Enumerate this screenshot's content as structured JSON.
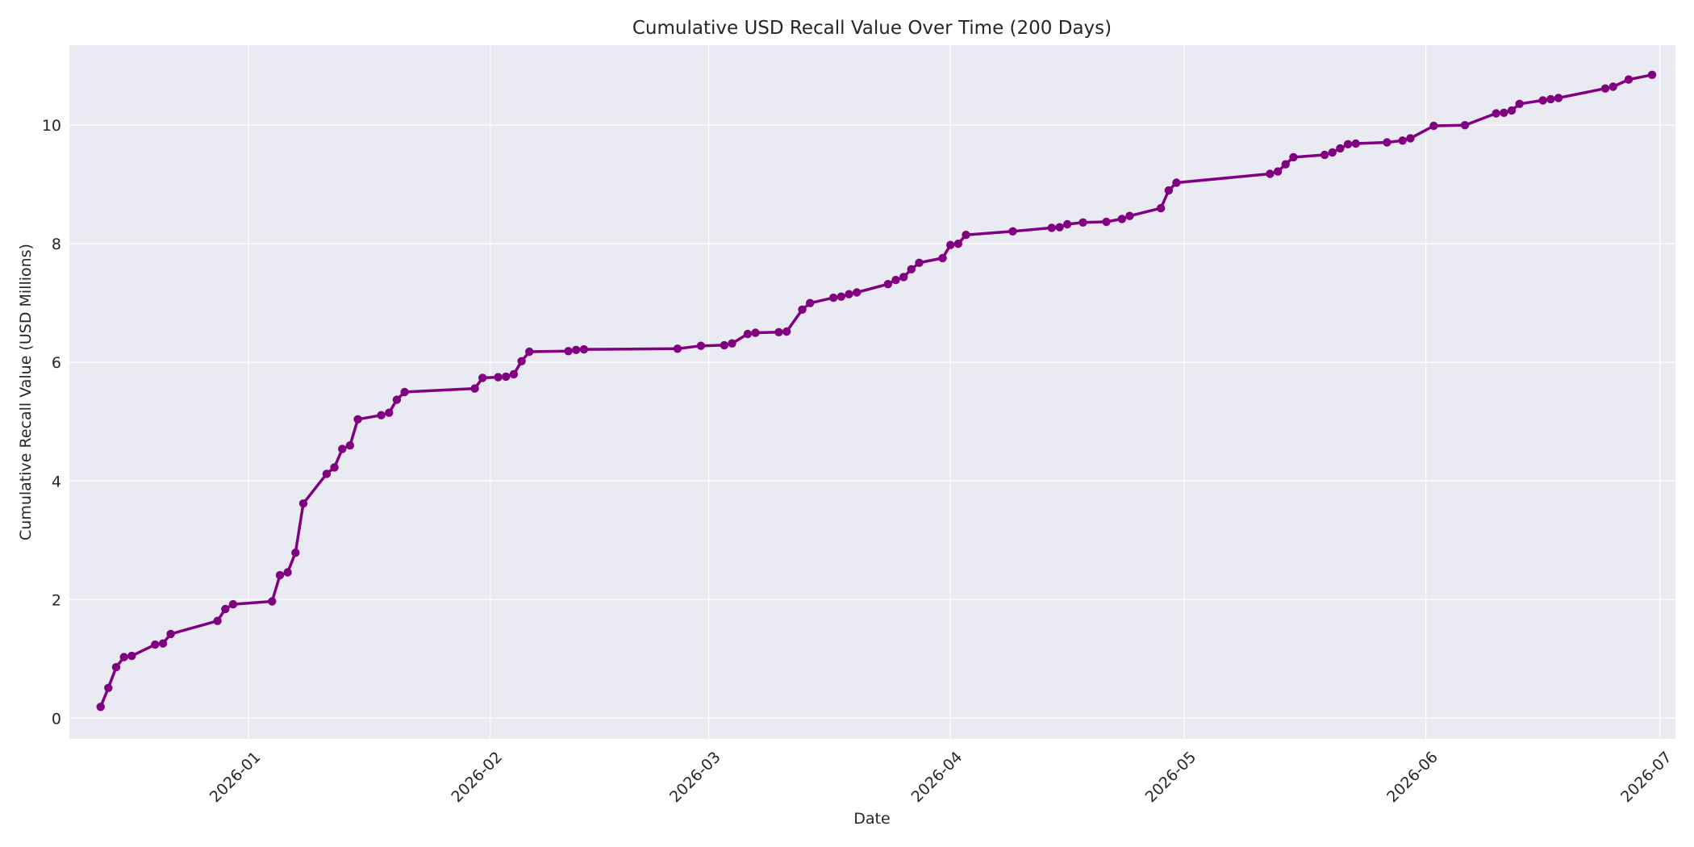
{
  "chart_data": {
    "type": "line",
    "title": "Cumulative USD Recall Value Over Time (200 Days)",
    "xlabel": "Date",
    "ylabel": "Cumulative Recall Value (USD Millions)",
    "xlim": [
      "2025-12-09",
      "2026-07-03"
    ],
    "ylim": [
      -0.35,
      11.35
    ],
    "x_ticks": [
      "2026-01-01",
      "2026-02-01",
      "2026-03-01",
      "2026-04-01",
      "2026-05-01",
      "2026-06-01",
      "2026-07-01"
    ],
    "x_tick_labels": [
      "2026-01",
      "2026-02",
      "2026-03",
      "2026-04",
      "2026-05",
      "2026-06",
      "2026-07"
    ],
    "y_ticks": [
      0,
      2,
      4,
      6,
      8,
      10
    ],
    "y_tick_labels": [
      "0",
      "2",
      "4",
      "6",
      "8",
      "10"
    ],
    "grid": true,
    "colors": {
      "series": "#800080",
      "plot_background": "#eaeaf2",
      "grid": "#ffffff"
    },
    "series": [
      {
        "points": [
          [
            "2025-12-13",
            0.19
          ],
          [
            "2025-12-14",
            0.51
          ],
          [
            "2025-12-15",
            0.86
          ],
          [
            "2025-12-16",
            1.03
          ],
          [
            "2025-12-17",
            1.05
          ],
          [
            "2025-12-20",
            1.24
          ],
          [
            "2025-12-21",
            1.26
          ],
          [
            "2025-12-22",
            1.42
          ],
          [
            "2025-12-28",
            1.64
          ],
          [
            "2025-12-29",
            1.84
          ],
          [
            "2025-12-30",
            1.92
          ],
          [
            "2026-01-04",
            1.97
          ],
          [
            "2026-01-05",
            2.41
          ],
          [
            "2026-01-06",
            2.46
          ],
          [
            "2026-01-07",
            2.79
          ],
          [
            "2026-01-08",
            3.62
          ],
          [
            "2026-01-11",
            4.12
          ],
          [
            "2026-01-12",
            4.23
          ],
          [
            "2026-01-13",
            4.54
          ],
          [
            "2026-01-14",
            4.6
          ],
          [
            "2026-01-15",
            5.04
          ],
          [
            "2026-01-18",
            5.11
          ],
          [
            "2026-01-19",
            5.15
          ],
          [
            "2026-01-20",
            5.37
          ],
          [
            "2026-01-21",
            5.5
          ],
          [
            "2026-01-30",
            5.56
          ],
          [
            "2026-01-31",
            5.74
          ],
          [
            "2026-02-02",
            5.75
          ],
          [
            "2026-02-03",
            5.76
          ],
          [
            "2026-02-04",
            5.8
          ],
          [
            "2026-02-05",
            6.02
          ],
          [
            "2026-02-06",
            6.18
          ],
          [
            "2026-02-11",
            6.19
          ],
          [
            "2026-02-12",
            6.21
          ],
          [
            "2026-02-13",
            6.22
          ],
          [
            "2026-02-25",
            6.23
          ],
          [
            "2026-02-28",
            6.28
          ],
          [
            "2026-03-03",
            6.29
          ],
          [
            "2026-03-04",
            6.32
          ],
          [
            "2026-03-06",
            6.48
          ],
          [
            "2026-03-07",
            6.5
          ],
          [
            "2026-03-10",
            6.51
          ],
          [
            "2026-03-11",
            6.52
          ],
          [
            "2026-03-13",
            6.89
          ],
          [
            "2026-03-14",
            7.0
          ],
          [
            "2026-03-17",
            7.09
          ],
          [
            "2026-03-18",
            7.11
          ],
          [
            "2026-03-19",
            7.15
          ],
          [
            "2026-03-20",
            7.18
          ],
          [
            "2026-03-24",
            7.32
          ],
          [
            "2026-03-25",
            7.39
          ],
          [
            "2026-03-26",
            7.44
          ],
          [
            "2026-03-27",
            7.57
          ],
          [
            "2026-03-28",
            7.68
          ],
          [
            "2026-03-31",
            7.76
          ],
          [
            "2026-04-01",
            7.98
          ],
          [
            "2026-04-02",
            8.0
          ],
          [
            "2026-04-03",
            8.15
          ],
          [
            "2026-04-09",
            8.21
          ],
          [
            "2026-04-14",
            8.27
          ],
          [
            "2026-04-15",
            8.28
          ],
          [
            "2026-04-16",
            8.33
          ],
          [
            "2026-04-18",
            8.36
          ],
          [
            "2026-04-21",
            8.37
          ],
          [
            "2026-04-23",
            8.42
          ],
          [
            "2026-04-24",
            8.47
          ],
          [
            "2026-04-28",
            8.6
          ],
          [
            "2026-04-29",
            8.9
          ],
          [
            "2026-04-30",
            9.03
          ],
          [
            "2026-05-12",
            9.18
          ],
          [
            "2026-05-13",
            9.22
          ],
          [
            "2026-05-14",
            9.34
          ],
          [
            "2026-05-15",
            9.46
          ],
          [
            "2026-05-19",
            9.5
          ],
          [
            "2026-05-20",
            9.54
          ],
          [
            "2026-05-21",
            9.61
          ],
          [
            "2026-05-22",
            9.68
          ],
          [
            "2026-05-23",
            9.69
          ],
          [
            "2026-05-27",
            9.71
          ],
          [
            "2026-05-29",
            9.74
          ],
          [
            "2026-05-30",
            9.78
          ],
          [
            "2026-06-02",
            9.99
          ],
          [
            "2026-06-06",
            10.0
          ],
          [
            "2026-06-10",
            10.2
          ],
          [
            "2026-06-11",
            10.21
          ],
          [
            "2026-06-12",
            10.25
          ],
          [
            "2026-06-13",
            10.36
          ],
          [
            "2026-06-16",
            10.42
          ],
          [
            "2026-06-17",
            10.44
          ],
          [
            "2026-06-18",
            10.46
          ],
          [
            "2026-06-24",
            10.62
          ],
          [
            "2026-06-25",
            10.65
          ],
          [
            "2026-06-27",
            10.77
          ],
          [
            "2026-06-30",
            10.85
          ]
        ]
      }
    ]
  }
}
